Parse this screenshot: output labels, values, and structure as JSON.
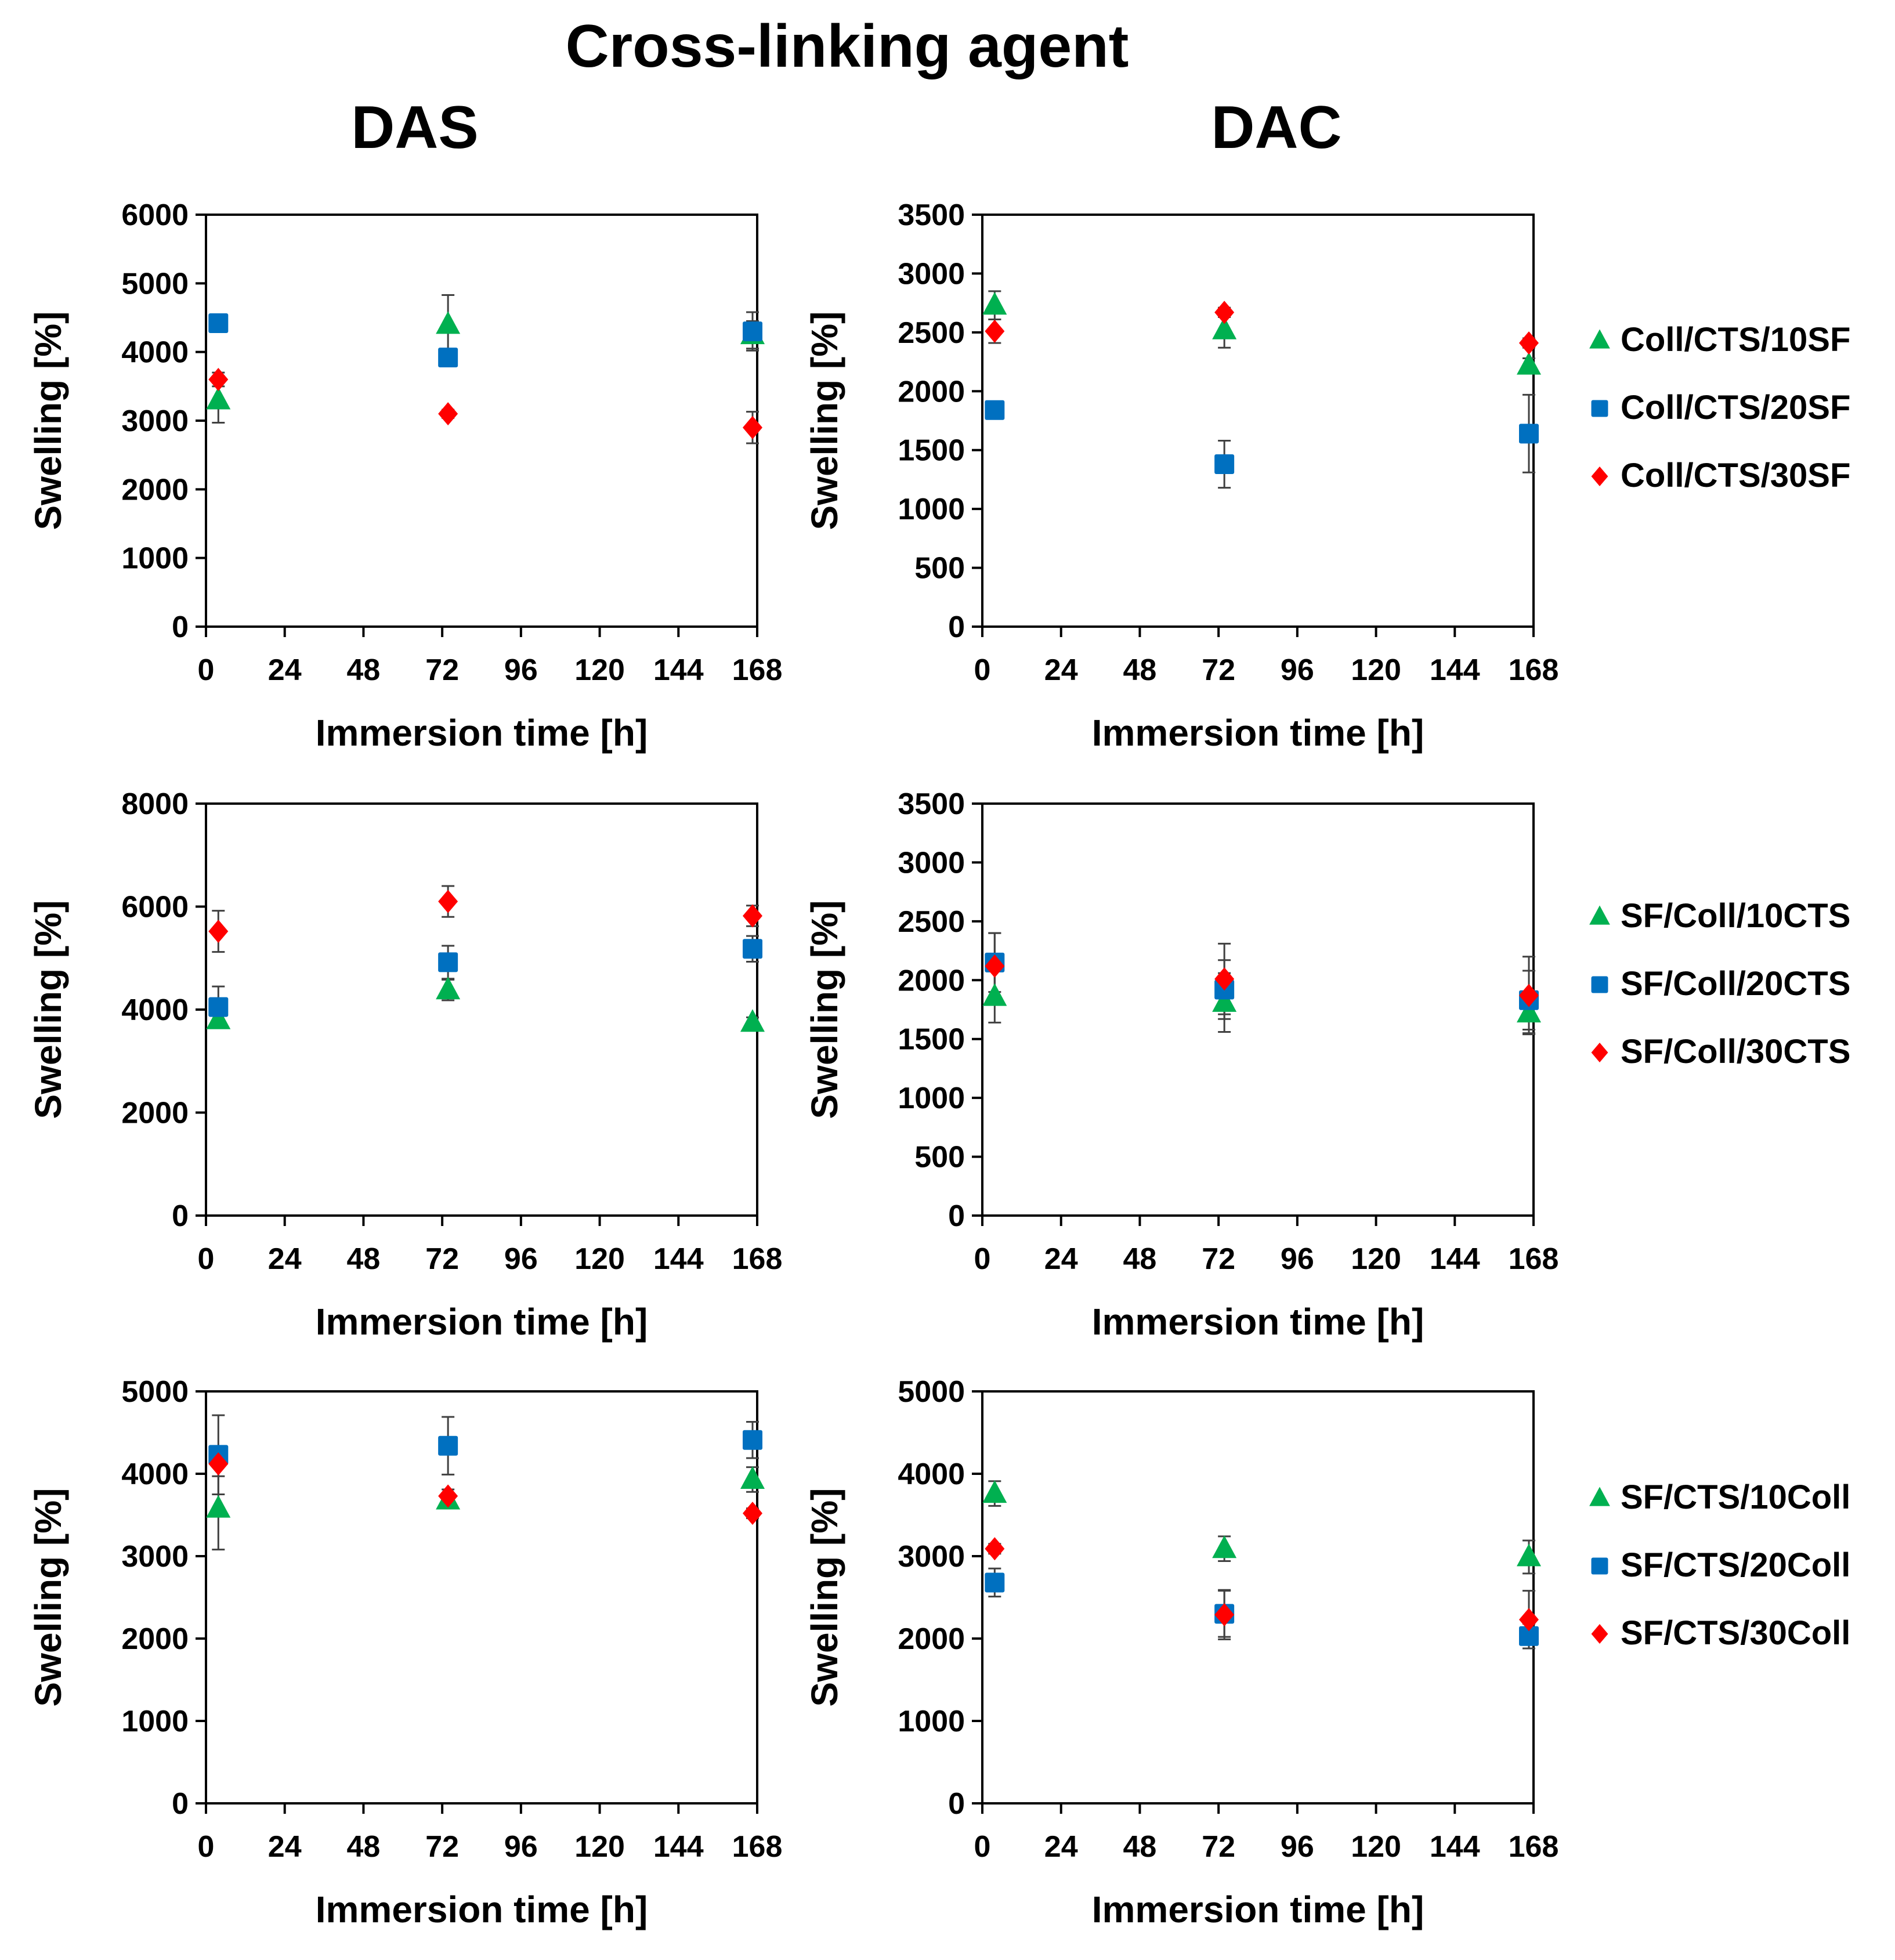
{
  "title": "Cross-linking agent",
  "column_titles": [
    "DAS",
    "DAC"
  ],
  "colors": {
    "green": "#00b050",
    "blue": "#0070c0",
    "red": "#ff0000",
    "errorbar": "#404040"
  },
  "legends": [
    [
      "Coll/CTS/10SF",
      "Coll/CTS/20SF",
      "Coll/CTS/30SF"
    ],
    [
      "SF/Coll/10CTS",
      "SF/Coll/20CTS",
      "SF/Coll/30CTS"
    ],
    [
      "SF/CTS/10Coll",
      "SF/CTS/20Coll",
      "SF/CTS/30Coll"
    ]
  ],
  "chart_data": [
    {
      "type": "scatter",
      "panel": "row1-DAS",
      "xlabel": "Immersion time [h]",
      "ylabel": "Swelling [%]",
      "xlim": [
        0,
        168
      ],
      "xticks": [
        "0",
        "24",
        "48",
        "72",
        "96",
        "120",
        "144",
        "168"
      ],
      "ylim": [
        0,
        6000
      ],
      "yticks": [
        "0",
        "1000",
        "2000",
        "3000",
        "4000",
        "5000",
        "6000"
      ],
      "series": [
        {
          "name": "Coll/CTS/10SF",
          "marker": "triangle",
          "x": [
            2,
            72,
            168
          ],
          "y": [
            3300,
            4400,
            4250
          ],
          "err": [
            330,
            430,
            200
          ]
        },
        {
          "name": "Coll/CTS/20SF",
          "marker": "square",
          "x": [
            2,
            72,
            168
          ],
          "y": [
            4420,
            3920,
            4300
          ],
          "err": [
            100,
            100,
            280
          ]
        },
        {
          "name": "Coll/CTS/30SF",
          "marker": "diamond",
          "x": [
            2,
            72,
            168
          ],
          "y": [
            3600,
            3100,
            2900
          ],
          "err": [
            100,
            60,
            230
          ]
        }
      ]
    },
    {
      "type": "scatter",
      "panel": "row1-DAC",
      "xlabel": "Immersion time [h]",
      "ylabel": "Swelling [%]",
      "xlim": [
        0,
        168
      ],
      "xticks": [
        "0",
        "24",
        "48",
        "72",
        "96",
        "120",
        "144",
        "168"
      ],
      "ylim": [
        0,
        3500
      ],
      "yticks": [
        "0",
        "500",
        "1000",
        "1500",
        "2000",
        "2500",
        "3000",
        "3500"
      ],
      "series": [
        {
          "name": "Coll/CTS/10SF",
          "marker": "triangle",
          "x": [
            2,
            72,
            168
          ],
          "y": [
            2730,
            2520,
            2220
          ],
          "err": [
            120,
            150,
            60
          ]
        },
        {
          "name": "Coll/CTS/20SF",
          "marker": "square",
          "x": [
            2,
            72,
            168
          ],
          "y": [
            1840,
            1380,
            1640
          ],
          "err": [
            40,
            200,
            330
          ]
        },
        {
          "name": "Coll/CTS/30SF",
          "marker": "diamond",
          "x": [
            2,
            72,
            168
          ],
          "y": [
            2510,
            2670,
            2410
          ],
          "err": [
            100,
            40,
            40
          ]
        }
      ]
    },
    {
      "type": "scatter",
      "panel": "row2-DAS",
      "xlabel": "Immersion time [h]",
      "ylabel": "Swelling [%]",
      "xlim": [
        0,
        168
      ],
      "xticks": [
        "0",
        "24",
        "48",
        "72",
        "96",
        "120",
        "144",
        "168"
      ],
      "ylim": [
        0,
        8000
      ],
      "yticks": [
        "0",
        "2000",
        "4000",
        "6000",
        "8000"
      ],
      "series": [
        {
          "name": "SF/Coll/10CTS",
          "marker": "triangle",
          "x": [
            2,
            72,
            168
          ],
          "y": [
            3800,
            4380,
            3750
          ],
          "err": [
            100,
            200,
            100
          ]
        },
        {
          "name": "SF/Coll/20CTS",
          "marker": "square",
          "x": [
            2,
            72,
            168
          ],
          "y": [
            4050,
            4920,
            5180
          ],
          "err": [
            400,
            320,
            250
          ]
        },
        {
          "name": "SF/Coll/30CTS",
          "marker": "diamond",
          "x": [
            2,
            72,
            168
          ],
          "y": [
            5520,
            6100,
            5820
          ],
          "err": [
            400,
            300,
            200
          ]
        }
      ]
    },
    {
      "type": "scatter",
      "panel": "row2-DAC",
      "xlabel": "Immersion time [h]",
      "ylabel": "Swelling [%]",
      "xlim": [
        0,
        168
      ],
      "xticks": [
        "0",
        "24",
        "48",
        "72",
        "96",
        "120",
        "144",
        "168"
      ],
      "ylim": [
        0,
        3500
      ],
      "yticks": [
        "0",
        "500",
        "1000",
        "1500",
        "2000",
        "2500",
        "3000",
        "3500"
      ],
      "series": [
        {
          "name": "SF/Coll/10CTS",
          "marker": "triangle",
          "x": [
            2,
            72,
            168
          ],
          "y": [
            1860,
            1810,
            1720
          ],
          "err": [
            220,
            250,
            170
          ]
        },
        {
          "name": "SF/Coll/20CTS",
          "marker": "square",
          "x": [
            2,
            72,
            168
          ],
          "y": [
            2150,
            1920,
            1830
          ],
          "err": [
            250,
            250,
            250
          ]
        },
        {
          "name": "SF/Coll/30CTS",
          "marker": "diamond",
          "x": [
            2,
            72,
            168
          ],
          "y": [
            2120,
            2010,
            1870
          ],
          "err": [
            280,
            300,
            330
          ]
        }
      ]
    },
    {
      "type": "scatter",
      "panel": "row3-DAS",
      "xlabel": "Immersion time [h]",
      "ylabel": "Swelling [%]",
      "xlim": [
        0,
        168
      ],
      "xticks": [
        "0",
        "24",
        "48",
        "72",
        "96",
        "120",
        "144",
        "168"
      ],
      "ylim": [
        0,
        5000
      ],
      "yticks": [
        "0",
        "1000",
        "2000",
        "3000",
        "4000",
        "5000"
      ],
      "series": [
        {
          "name": "SF/CTS/10Coll",
          "marker": "triangle",
          "x": [
            2,
            72,
            168
          ],
          "y": [
            3580,
            3680,
            3930
          ],
          "err": [
            500,
            60,
            150
          ]
        },
        {
          "name": "SF/CTS/20Coll",
          "marker": "square",
          "x": [
            2,
            72,
            168
          ],
          "y": [
            4230,
            4340,
            4410
          ],
          "err": [
            480,
            350,
            220
          ]
        },
        {
          "name": "SF/CTS/30Coll",
          "marker": "diamond",
          "x": [
            2,
            72,
            168
          ],
          "y": [
            4120,
            3730,
            3520
          ],
          "err": [
            150,
            80,
            60
          ]
        }
      ]
    },
    {
      "type": "scatter",
      "panel": "row3-DAC",
      "xlabel": "Immersion time [h]",
      "ylabel": "Swelling [%]",
      "xlim": [
        0,
        168
      ],
      "xticks": [
        "0",
        "24",
        "48",
        "72",
        "96",
        "120",
        "144",
        "168"
      ],
      "ylim": [
        0,
        5000
      ],
      "yticks": [
        "0",
        "1000",
        "2000",
        "3000",
        "4000",
        "5000"
      ],
      "series": [
        {
          "name": "SF/CTS/10Coll",
          "marker": "triangle",
          "x": [
            2,
            72,
            168
          ],
          "y": [
            3760,
            3090,
            2990
          ],
          "err": [
            150,
            150,
            200
          ]
        },
        {
          "name": "SF/CTS/20Coll",
          "marker": "square",
          "x": [
            2,
            72,
            168
          ],
          "y": [
            2680,
            2300,
            2030
          ],
          "err": [
            170,
            280,
            150
          ]
        },
        {
          "name": "SF/CTS/30Coll",
          "marker": "diamond",
          "x": [
            2,
            72,
            168
          ],
          "y": [
            3090,
            2290,
            2230
          ],
          "err": [
            60,
            300,
            350
          ]
        }
      ]
    }
  ]
}
